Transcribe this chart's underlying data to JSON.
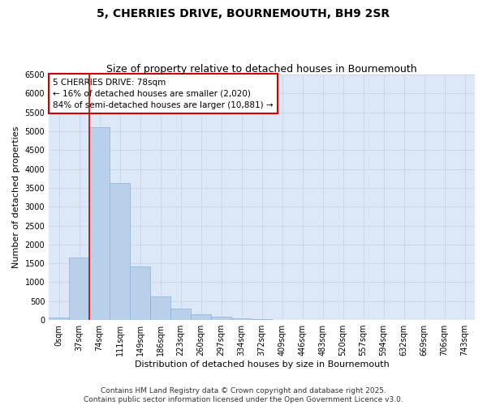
{
  "title": "5, CHERRIES DRIVE, BOURNEMOUTH, BH9 2SR",
  "subtitle": "Size of property relative to detached houses in Bournemouth",
  "xlabel": "Distribution of detached houses by size in Bournemouth",
  "ylabel": "Number of detached properties",
  "categories": [
    "0sqm",
    "37sqm",
    "74sqm",
    "111sqm",
    "149sqm",
    "186sqm",
    "223sqm",
    "260sqm",
    "297sqm",
    "334sqm",
    "372sqm",
    "409sqm",
    "446sqm",
    "483sqm",
    "520sqm",
    "557sqm",
    "594sqm",
    "632sqm",
    "669sqm",
    "706sqm",
    "743sqm"
  ],
  "values": [
    70,
    1650,
    5100,
    3620,
    1420,
    620,
    310,
    150,
    80,
    50,
    30,
    0,
    0,
    0,
    0,
    0,
    0,
    0,
    0,
    0,
    0
  ],
  "bar_color": "#b8d0ea",
  "bar_edge_color": "#8ab0d8",
  "vline_x_index": 2,
  "vline_color": "#cc0000",
  "annotation_text": "5 CHERRIES DRIVE: 78sqm\n← 16% of detached houses are smaller (2,020)\n84% of semi-detached houses are larger (10,881) →",
  "annotation_box_color": "#ffffff",
  "annotation_box_edge": "#cc0000",
  "ylim": [
    0,
    6500
  ],
  "yticks": [
    0,
    500,
    1000,
    1500,
    2000,
    2500,
    3000,
    3500,
    4000,
    4500,
    5000,
    5500,
    6000,
    6500
  ],
  "grid_color": "#c8d8ea",
  "background_color": "#dce8f5",
  "footer_line1": "Contains HM Land Registry data © Crown copyright and database right 2025.",
  "footer_line2": "Contains public sector information licensed under the Open Government Licence v3.0.",
  "title_fontsize": 10,
  "subtitle_fontsize": 9,
  "axis_label_fontsize": 8,
  "tick_fontsize": 7,
  "annotation_fontsize": 7.5,
  "footer_fontsize": 6.5
}
